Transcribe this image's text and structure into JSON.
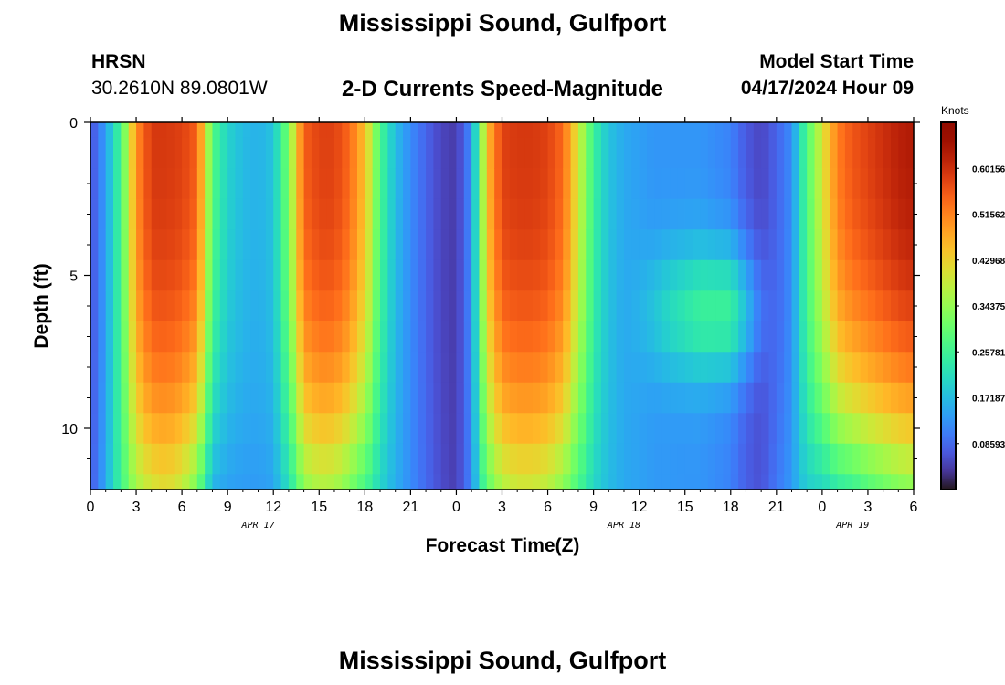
{
  "header": {
    "title": "Mississippi Sound, Gulfport",
    "station_id": "HRSN",
    "station_coords": "30.2610N  89.0801W",
    "subtitle": "2-D Currents Speed-Magnitude",
    "model_start_label": "Model Start Time",
    "model_start_value": "04/17/2024 Hour 09"
  },
  "footer": {
    "title": "Mississippi Sound, Gulfport"
  },
  "chart_data": {
    "type": "heatmap",
    "title": "2-D Currents Speed-Magnitude",
    "xlabel": "Forecast Time(Z)",
    "ylabel": "Depth (ft)",
    "x_tick_labels": [
      "0",
      "3",
      "6",
      "9",
      "12",
      "15",
      "18",
      "21",
      "0",
      "3",
      "6",
      "9",
      "12",
      "15",
      "18",
      "21",
      "0",
      "3",
      "6"
    ],
    "x_tick_hours": [
      0,
      3,
      6,
      9,
      12,
      15,
      18,
      21,
      24,
      27,
      30,
      33,
      36,
      39,
      42,
      45,
      48,
      51,
      54
    ],
    "date_labels": [
      {
        "label": "APR 17",
        "hour": 11
      },
      {
        "label": "APR 18",
        "hour": 35
      },
      {
        "label": "APR 19",
        "hour": 50
      }
    ],
    "xlim": [
      0,
      54
    ],
    "y_tick_labels": [
      "0",
      "5",
      "10"
    ],
    "y_tick_values": [
      0,
      5,
      10
    ],
    "ylim": [
      0,
      12
    ],
    "y_inverted": true,
    "colorbar": {
      "label": "Knots",
      "tick_labels": [
        "0.60156",
        "0.51562",
        "0.42968",
        "0.34375",
        "0.25781",
        "0.17187",
        "0.08593"
      ],
      "tick_values": [
        0.60156,
        0.51562,
        0.42968,
        0.34375,
        0.25781,
        0.17187,
        0.08593
      ],
      "range": [
        0,
        0.6875
      ],
      "colormap": "turbo"
    },
    "speed_profile": {
      "hours": [
        0,
        1,
        2,
        3,
        4,
        5,
        6,
        7,
        8,
        9,
        10,
        11,
        12,
        13,
        14,
        15,
        16,
        17,
        18,
        19,
        20,
        21,
        22,
        23,
        24,
        25,
        26,
        27,
        28,
        29,
        30,
        31,
        32,
        33,
        34,
        35,
        36,
        37,
        38,
        39,
        40,
        41,
        42,
        43,
        44,
        45,
        46,
        47,
        48,
        49,
        50,
        51,
        52,
        53,
        54
      ],
      "surface": [
        0.06,
        0.14,
        0.27,
        0.5,
        0.59,
        0.59,
        0.58,
        0.55,
        0.28,
        0.2,
        0.17,
        0.16,
        0.18,
        0.32,
        0.55,
        0.58,
        0.58,
        0.54,
        0.45,
        0.27,
        0.17,
        0.12,
        0.08,
        0.05,
        0.04,
        0.12,
        0.45,
        0.58,
        0.59,
        0.59,
        0.58,
        0.54,
        0.4,
        0.25,
        0.18,
        0.15,
        0.14,
        0.13,
        0.13,
        0.13,
        0.13,
        0.12,
        0.11,
        0.07,
        0.05,
        0.08,
        0.12,
        0.28,
        0.4,
        0.52,
        0.56,
        0.58,
        0.6,
        0.62,
        0.63
      ],
      "bottom": [
        0.1,
        0.18,
        0.25,
        0.32,
        0.34,
        0.35,
        0.32,
        0.27,
        0.14,
        0.12,
        0.12,
        0.12,
        0.13,
        0.2,
        0.27,
        0.29,
        0.28,
        0.25,
        0.22,
        0.18,
        0.15,
        0.12,
        0.09,
        0.07,
        0.05,
        0.1,
        0.24,
        0.3,
        0.32,
        0.32,
        0.31,
        0.28,
        0.22,
        0.18,
        0.16,
        0.15,
        0.15,
        0.16,
        0.17,
        0.18,
        0.19,
        0.19,
        0.18,
        0.17,
        0.15,
        0.14,
        0.14,
        0.16,
        0.17,
        0.19,
        0.2,
        0.22,
        0.23,
        0.24,
        0.24
      ],
      "bottom_blend_weight": [
        0.18,
        0.2,
        0.55,
        0.65,
        0.62,
        0.6,
        0.62,
        0.68,
        0.7,
        0.6,
        0.55,
        0.5,
        0.6,
        0.7,
        0.62,
        0.6,
        0.6,
        0.62,
        0.65,
        0.6,
        0.6,
        0.55,
        0.45,
        0.3,
        0.2,
        0.4,
        0.62,
        0.62,
        0.6,
        0.6,
        0.62,
        0.65,
        0.6,
        0.55,
        0.4,
        0.3,
        0.2,
        0.1,
        0.05,
        0.0,
        0.0,
        0.0,
        0.0,
        0.05,
        0.1,
        0.25,
        0.45,
        0.6,
        0.7,
        0.7,
        0.7,
        0.68,
        0.66,
        0.64,
        0.62
      ],
      "mid_boost": [
        0,
        0,
        0,
        0,
        0,
        0,
        0,
        0,
        0,
        0,
        0,
        0,
        0,
        0,
        0,
        0,
        0,
        0,
        0,
        0,
        0,
        0,
        0,
        0,
        0,
        0,
        0,
        0,
        0,
        0,
        0,
        0,
        0,
        0,
        0,
        0,
        0.02,
        0.05,
        0.08,
        0.1,
        0.12,
        0.13,
        0.14,
        0.1,
        0.04,
        0,
        0,
        0,
        0,
        0,
        0,
        0,
        0,
        0,
        0
      ]
    }
  }
}
